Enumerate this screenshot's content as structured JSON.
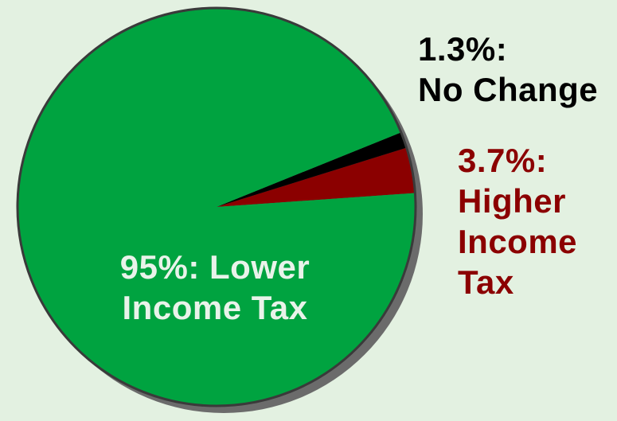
{
  "chart_data": {
    "type": "pie",
    "slices": [
      {
        "label": "Lower Income Tax",
        "value": 95,
        "display": [
          "95%: Lower",
          "Income Tax"
        ],
        "color": "#00a340"
      },
      {
        "label": "No Change",
        "value": 1.3,
        "display": [
          "1.3%:",
          "No Change"
        ],
        "color": "#000000"
      },
      {
        "label": "Higher Income Tax",
        "value": 3.7,
        "display": [
          "3.7%:",
          "Higher",
          "Income",
          "Tax"
        ],
        "color": "#8b0000"
      }
    ],
    "background": "#e3f1e1",
    "shadow_color": "#6b6b6b",
    "outline_color": "#3a3a3a"
  }
}
